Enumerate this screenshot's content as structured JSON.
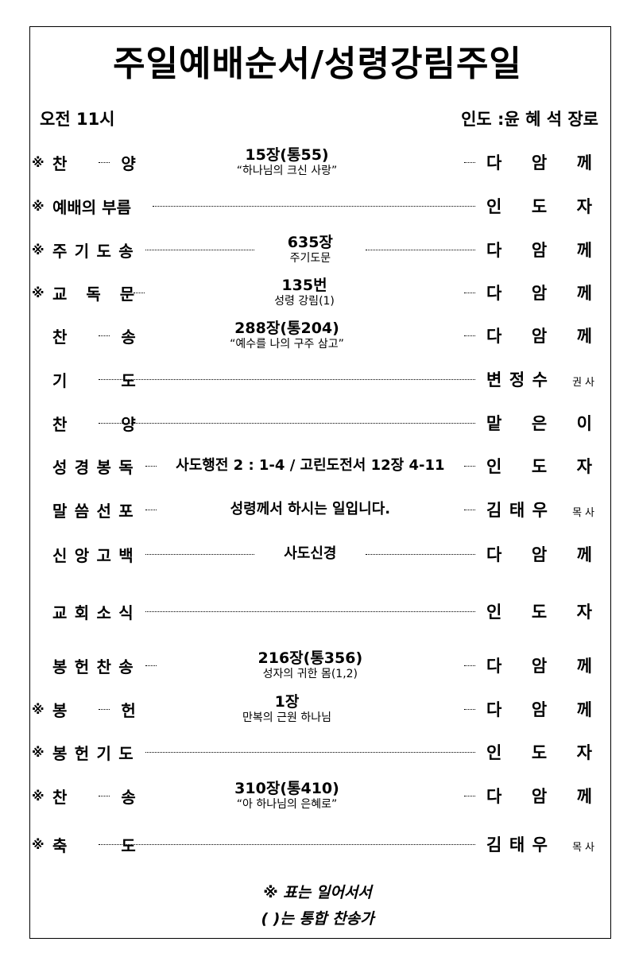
{
  "title": "주일예배순서/성령강림주일",
  "header": {
    "time": "오전 11시",
    "leader": "인도 :윤 혜 석 장로"
  },
  "standing_mark": "※",
  "rows": [
    {
      "stand": true,
      "label": "찬양",
      "main": "15장(통55)",
      "sub": "“하나님의 크신 사랑”",
      "right": "다암께",
      "suffix": ""
    },
    {
      "stand": true,
      "label": "예배의 부름",
      "main": "",
      "sub": "",
      "right": "인도자",
      "suffix": ""
    },
    {
      "stand": true,
      "label": "주기도송",
      "main": "635장",
      "sub": "주기도문",
      "right": "다암께",
      "suffix": "",
      "long": true
    },
    {
      "stand": true,
      "label": "교독문",
      "main": "135번",
      "sub": "성령 강림(1)",
      "right": "다암께",
      "suffix": ""
    },
    {
      "stand": false,
      "label": "찬송",
      "main": "288장(통204)",
      "sub": "“예수를 나의 구주 삼고”",
      "right": "다암께",
      "suffix": ""
    },
    {
      "stand": false,
      "label": "기도",
      "main": "",
      "sub": "",
      "right": "변정수",
      "suffix": "권사"
    },
    {
      "stand": false,
      "label": "찬양",
      "main": "",
      "sub": "",
      "right": "맡은이",
      "suffix": ""
    },
    {
      "stand": false,
      "label": "성경봉독",
      "main": "사도행전 2 : 1-4 / 고린도전서 12장 4-11",
      "sub": "",
      "right": "인도자",
      "suffix": ""
    },
    {
      "stand": false,
      "label": "말씀선포",
      "main": "성령께서 하시는 일입니다.",
      "sub": "",
      "right": "김태우",
      "suffix": "목사"
    },
    {
      "stand": false,
      "label": "신앙고백",
      "main": "사도신경",
      "sub": "",
      "right": "다암께",
      "suffix": "",
      "long": true
    },
    {
      "stand": false,
      "label": "교회소식",
      "main": "",
      "sub": "",
      "right": "인도자",
      "suffix": ""
    },
    {
      "stand": false,
      "label": "봉헌찬송",
      "main": "216장(통356)",
      "sub": "성자의 귀한 몸(1,2)",
      "right": "다암께",
      "suffix": ""
    },
    {
      "stand": true,
      "label": "봉헌",
      "main": "1장",
      "sub": "만복의 근원 하나님",
      "right": "다암께",
      "suffix": ""
    },
    {
      "stand": true,
      "label": "봉헌기도",
      "main": "",
      "sub": "",
      "right": "인도자",
      "suffix": ""
    },
    {
      "stand": true,
      "label": "찬송",
      "main": "310장(통410)",
      "sub": "“아 하나님의 은혜로”",
      "right": "다암께",
      "suffix": ""
    },
    {
      "stand": true,
      "label": "축도",
      "main": "",
      "sub": "",
      "right": "김태우",
      "suffix": "목사"
    }
  ],
  "footer": {
    "note1": "※ 표는 일어서서",
    "note2": "(  )는 통합 찬송가"
  }
}
